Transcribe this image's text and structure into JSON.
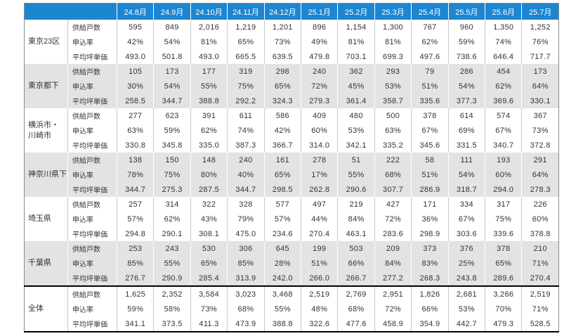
{
  "colors": {
    "header_bg": "#1c86d1",
    "header_text": "#ffffff",
    "band_gray": "#e3e3e3",
    "band_white": "#ffffff",
    "body_text": "#333333",
    "grid_light": "#c9c9c9",
    "outer_border": "#8a8a8a",
    "total_rule": "#000000"
  },
  "chart_data": {
    "type": "table",
    "title": "",
    "months": [
      "24.8月",
      "24.9月",
      "24.10月",
      "24.11月",
      "24.12月",
      "25.1月",
      "25.2月",
      "25.3月",
      "25.4月",
      "25.5月",
      "25.6月",
      "25.7月"
    ],
    "metric_labels": [
      "供給戸数",
      "申込率",
      "平均坪単価"
    ],
    "groups": [
      {
        "name": "東京23区",
        "values": [
          [
            "595",
            "849",
            "2,016",
            "1,219",
            "1,201",
            "896",
            "1,154",
            "1,300",
            "767",
            "960",
            "1,350",
            "1,252"
          ],
          [
            "42%",
            "54%",
            "81%",
            "65%",
            "73%",
            "49%",
            "81%",
            "81%",
            "62%",
            "59%",
            "74%",
            "76%"
          ],
          [
            "493.0",
            "501.8",
            "493.0",
            "665.5",
            "639.5",
            "479.8",
            "703.1",
            "699.3",
            "497.6",
            "738.6",
            "646.4",
            "717.7"
          ]
        ]
      },
      {
        "name": "東京都下",
        "values": [
          [
            "105",
            "173",
            "177",
            "319",
            "298",
            "240",
            "362",
            "293",
            "79",
            "286",
            "454",
            "173"
          ],
          [
            "30%",
            "54%",
            "55%",
            "75%",
            "65%",
            "72%",
            "45%",
            "53%",
            "51%",
            "54%",
            "62%",
            "64%"
          ],
          [
            "258.5",
            "344.7",
            "388.8",
            "292.2",
            "324.3",
            "279.3",
            "361.4",
            "358.7",
            "335.6",
            "377.3",
            "369.6",
            "330.1"
          ]
        ]
      },
      {
        "name": "横浜市・\n川崎市",
        "values": [
          [
            "277",
            "623",
            "391",
            "611",
            "586",
            "409",
            "480",
            "500",
            "378",
            "614",
            "574",
            "367"
          ],
          [
            "63%",
            "59%",
            "62%",
            "74%",
            "42%",
            "60%",
            "53%",
            "63%",
            "67%",
            "69%",
            "67%",
            "73%"
          ],
          [
            "330.8",
            "345.8",
            "335.0",
            "387.3",
            "366.7",
            "314.0",
            "342.1",
            "335.2",
            "345.6",
            "331.5",
            "340.7",
            "372.8"
          ]
        ]
      },
      {
        "name": "神奈川県下",
        "values": [
          [
            "138",
            "150",
            "148",
            "240",
            "161",
            "278",
            "51",
            "222",
            "58",
            "111",
            "193",
            "291"
          ],
          [
            "78%",
            "75%",
            "80%",
            "40%",
            "65%",
            "17%",
            "55%",
            "68%",
            "51%",
            "54%",
            "60%",
            "64%"
          ],
          [
            "344.7",
            "275.3",
            "287.5",
            "344.7",
            "298.5",
            "262.8",
            "290.6",
            "307.7",
            "286.9",
            "318.7",
            "294.0",
            "278.3"
          ]
        ]
      },
      {
        "name": "埼玉県",
        "values": [
          [
            "257",
            "314",
            "322",
            "328",
            "577",
            "497",
            "219",
            "427",
            "171",
            "334",
            "317",
            "226"
          ],
          [
            "57%",
            "62%",
            "43%",
            "79%",
            "57%",
            "44%",
            "84%",
            "72%",
            "36%",
            "67%",
            "75%",
            "60%"
          ],
          [
            "294.8",
            "290.1",
            "308.1",
            "475.0",
            "234.6",
            "270.4",
            "463.1",
            "283.6",
            "298.9",
            "303.6",
            "339.6",
            "378.8"
          ]
        ]
      },
      {
        "name": "千葉県",
        "values": [
          [
            "253",
            "243",
            "530",
            "306",
            "645",
            "199",
            "503",
            "209",
            "373",
            "376",
            "378",
            "210"
          ],
          [
            "85%",
            "55%",
            "65%",
            "85%",
            "28%",
            "51%",
            "66%",
            "84%",
            "83%",
            "25%",
            "65%",
            "71%"
          ],
          [
            "276.7",
            "290.9",
            "285.4",
            "313.9",
            "242.0",
            "266.0",
            "266.7",
            "277.2",
            "268.3",
            "243.8",
            "289.6",
            "270.4"
          ]
        ]
      },
      {
        "name": "全体",
        "values": [
          [
            "1,625",
            "2,352",
            "3,584",
            "3,023",
            "3,468",
            "2,519",
            "2,769",
            "2,951",
            "1,826",
            "2,681",
            "3,266",
            "2,519"
          ],
          [
            "59%",
            "58%",
            "73%",
            "68%",
            "55%",
            "48%",
            "68%",
            "72%",
            "66%",
            "53%",
            "70%",
            "71%"
          ],
          [
            "341.1",
            "373.5",
            "411.3",
            "473.9",
            "388.8",
            "322.6",
            "477.6",
            "458.9",
            "354.9",
            "442.7",
            "479.3",
            "528.5"
          ]
        ]
      }
    ]
  }
}
